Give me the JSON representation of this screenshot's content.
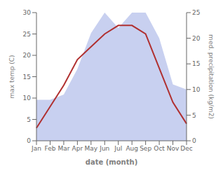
{
  "chart_data": {
    "type": "line",
    "xlabel": "date (month)",
    "ylabel": "max temp (C)",
    "y2label": "med. precipitation (kg/m2)",
    "categories": [
      "Jan",
      "Feb",
      "Mar",
      "Apr",
      "May",
      "Jun",
      "Jul",
      "Aug",
      "Sep",
      "Oct",
      "Nov",
      "Dec"
    ],
    "series": [
      {
        "type": "area",
        "axis": "y2",
        "color": "#c8d0f0",
        "values": [
          8,
          8,
          9,
          14,
          21,
          25,
          22,
          25,
          25,
          20,
          11,
          10
        ]
      },
      {
        "type": "line",
        "color": "#b03030",
        "values": [
          3,
          8,
          13,
          19,
          22,
          25,
          27,
          27,
          25,
          17,
          9,
          4
        ]
      }
    ],
    "ylim": [
      0,
      30
    ],
    "yticks": [
      0,
      5,
      10,
      15,
      20,
      25,
      30
    ],
    "y2lim": [
      0,
      25
    ],
    "y2ticks": [
      0,
      5,
      10,
      15,
      20,
      25
    ],
    "grid": false
  }
}
